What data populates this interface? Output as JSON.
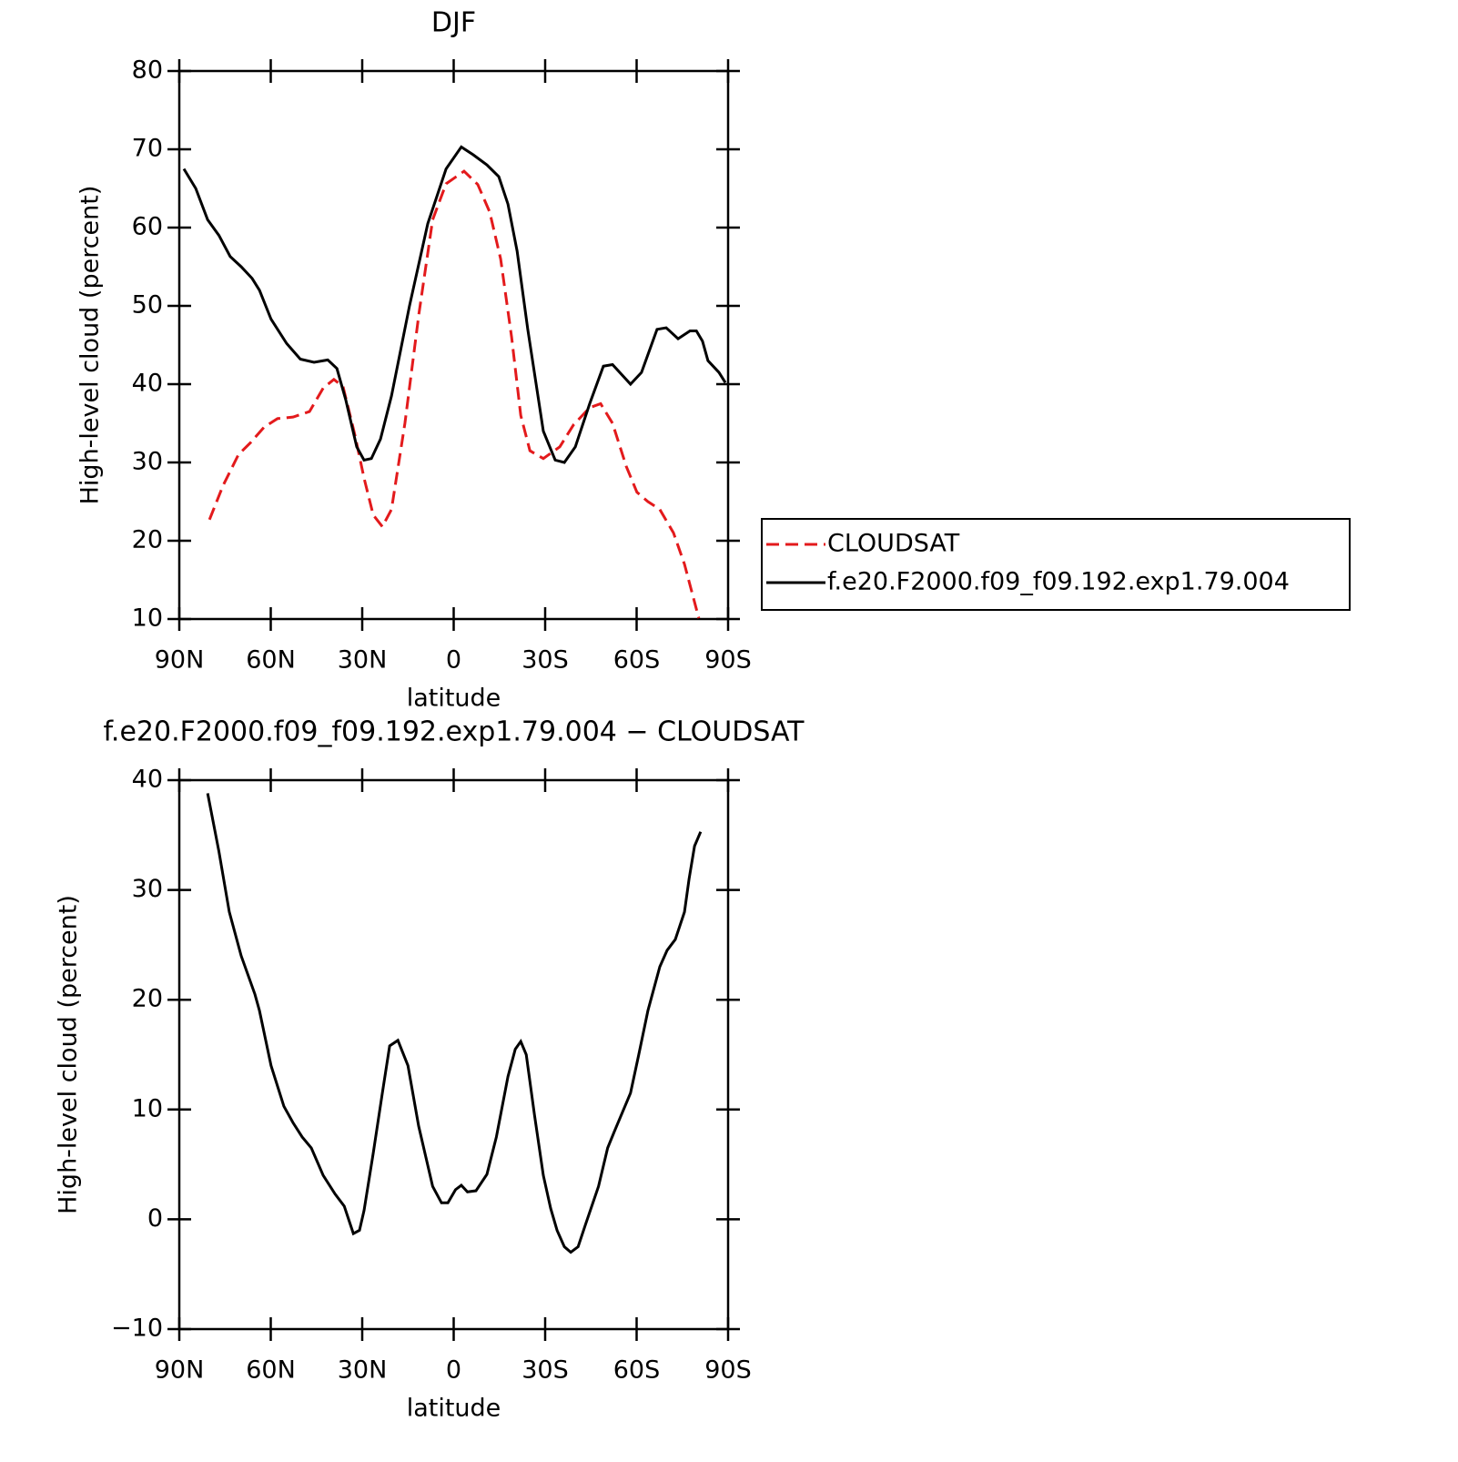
{
  "chart_data": [
    {
      "type": "line",
      "title": "DJF",
      "xlabel": "latitude",
      "ylabel": "High-level cloud (percent)",
      "xlim": [
        90,
        -90
      ],
      "xticks": [
        {
          "value": 90,
          "label": "90N"
        },
        {
          "value": 60,
          "label": "60N"
        },
        {
          "value": 30,
          "label": "30N"
        },
        0,
        {
          "value": -30,
          "label": "30S"
        },
        {
          "value": -60,
          "label": "60S"
        },
        {
          "value": -90,
          "label": "90S"
        }
      ],
      "ylim": [
        10,
        80
      ],
      "yticks": [
        10,
        20,
        30,
        40,
        50,
        60,
        70,
        80
      ],
      "legend": "right",
      "series": [
        {
          "name": "CLOUDSAT",
          "color": "#e31a1c",
          "style": "dashed",
          "x": [
            80.1,
            75.7,
            70.6,
            66.7,
            62.2,
            57.8,
            52.7,
            47.3,
            42.8,
            39.3,
            36.3,
            32.4,
            29.4,
            26.4,
            23.4,
            20.4,
            16,
            11.4,
            6.9,
            2.5,
            -3.4,
            -7.9,
            -11.8,
            -15.4,
            -19,
            -22,
            -25,
            -29.4,
            -34.8,
            -39.3,
            -44.6,
            -48.2,
            -52.1,
            -56.6,
            -60.1,
            -63.7,
            -67.6,
            -72.1,
            -75.7,
            -80.4
          ],
          "values": [
            22.7,
            27,
            31,
            32.5,
            34.5,
            35.6,
            35.8,
            36.5,
            39.5,
            40.6,
            39.7,
            33.5,
            28,
            23.3,
            21.8,
            24,
            35,
            49,
            61,
            65.6,
            67.2,
            65.5,
            62,
            56,
            46,
            36,
            31.5,
            30.5,
            32,
            34.8,
            37,
            37.5,
            35,
            29.5,
            26.2,
            25,
            24,
            21,
            17,
            10.1
          ]
        },
        {
          "name": "f.e20.F2000.f09_f09.192.exp1.79.004",
          "color": "#000000",
          "style": "solid",
          "x": [
            88.5,
            84.6,
            80.7,
            77,
            73.3,
            69.7,
            66.1,
            63.7,
            59.9,
            54.8,
            50.3,
            45.8,
            41.3,
            38.3,
            35.4,
            31.8,
            29.4,
            27,
            24,
            20.4,
            14.5,
            8.5,
            2.5,
            -2.5,
            -6.4,
            -10.9,
            -14.8,
            -17.8,
            -20.8,
            -24.3,
            -29.4,
            -33.3,
            -36.3,
            -39.9,
            -44.6,
            -49.1,
            -52.1,
            -58,
            -61.6,
            -66.7,
            -69.7,
            -73.6,
            -77.5,
            -79.6,
            -81.6,
            -83.4,
            -87,
            -89.1
          ],
          "values": [
            67.5,
            65,
            61,
            59,
            56.3,
            55,
            53.5,
            52,
            48.3,
            45.2,
            43.2,
            42.8,
            43.1,
            42,
            38,
            32,
            30.3,
            30.5,
            33,
            38.5,
            50,
            60.5,
            67.5,
            70.3,
            69.3,
            68,
            66.5,
            63,
            57,
            47,
            34,
            30.3,
            30,
            32,
            37.5,
            42.3,
            42.5,
            40,
            41.5,
            47,
            47.2,
            45.8,
            46.8,
            46.8,
            45.5,
            43,
            41.5,
            40.2
          ]
        }
      ]
    },
    {
      "type": "line",
      "title": "f.e20.F2000.f09_f09.192.exp1.79.004 − CLOUDSAT",
      "xlabel": "latitude",
      "ylabel": "High-level cloud (percent)",
      "xlim": [
        90,
        -90
      ],
      "xticks": [
        {
          "value": 90,
          "label": "90N"
        },
        {
          "value": 60,
          "label": "60N"
        },
        {
          "value": 30,
          "label": "30N"
        },
        0,
        {
          "value": -30,
          "label": "30S"
        },
        {
          "value": -60,
          "label": "60S"
        },
        {
          "value": -90,
          "label": "90S"
        }
      ],
      "ylim": [
        -10,
        40
      ],
      "yticks": [
        {
          "value": -10,
          "label": "−10"
        },
        0,
        10,
        20,
        30,
        40
      ],
      "series": [
        {
          "color": "#000000",
          "style": "solid",
          "x": [
            80.7,
            77,
            73.6,
            69.7,
            65.2,
            63.7,
            59.9,
            55.7,
            52.7,
            49.7,
            46.7,
            42.8,
            38.9,
            35.9,
            32.9,
            30.9,
            29.4,
            26.4,
            23.4,
            21,
            18.3,
            15,
            11.5,
            6.9,
            4,
            1.9,
            -0.6,
            -2.5,
            -4.5,
            -7.3,
            -10.9,
            -14,
            -17.8,
            -20.2,
            -22,
            -23.8,
            -26.5,
            -29.4,
            -31.8,
            -33.9,
            -36.3,
            -38.4,
            -40.8,
            -43.2,
            -47.5,
            -50.5,
            -52.7,
            -58,
            -60.7,
            -63.7,
            -67.6,
            -70,
            -72.7,
            -75.7,
            -77.2,
            -79,
            -81
          ],
          "values": [
            38.8,
            33.5,
            28,
            24,
            20.5,
            19,
            14,
            10.3,
            8.8,
            7.5,
            6.5,
            4,
            2.3,
            1.2,
            -1.3,
            -1,
            0.8,
            6,
            11.5,
            15.8,
            16.3,
            14,
            8.5,
            3,
            1.5,
            1.5,
            2.7,
            3.1,
            2.5,
            2.6,
            4.1,
            7.5,
            13,
            15.5,
            16.2,
            15,
            9.5,
            4,
            1,
            -1,
            -2.5,
            -3,
            -2.5,
            -0.5,
            3,
            6.5,
            8,
            11.5,
            15,
            19,
            23,
            24.5,
            25.5,
            28,
            31,
            34,
            35.3
          ]
        }
      ]
    }
  ]
}
